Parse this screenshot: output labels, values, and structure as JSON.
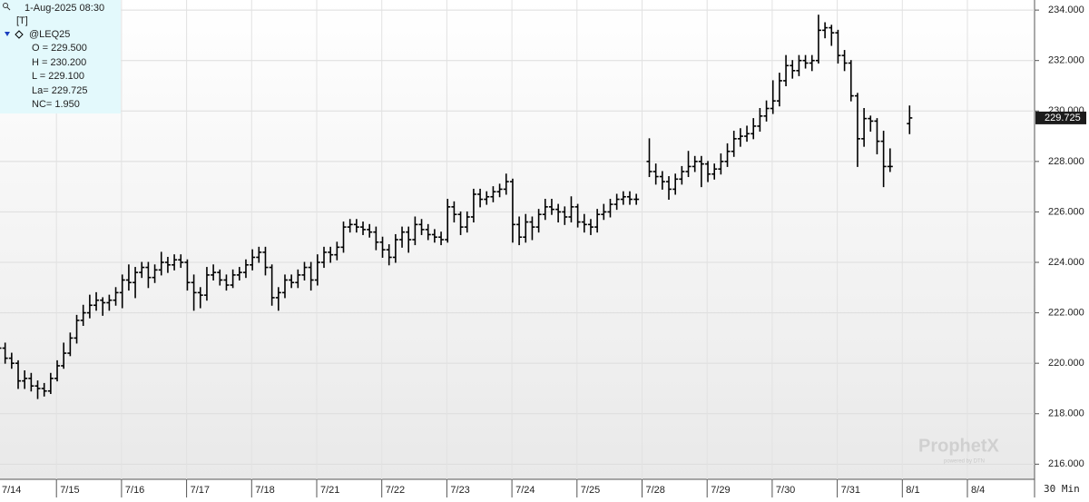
{
  "header": {
    "timestamp": "1-Aug-2025 08:30",
    "mode": "[T]",
    "symbol": "@LEQ25",
    "lines": [
      "O = 229.500",
      "H = 230.200",
      "L = 229.100",
      "La= 229.725",
      "NC= 1.950"
    ],
    "watermark": "ProphetX",
    "watermark_sub": "powered by DTN",
    "interval": "30 Min"
  },
  "chart_data": {
    "type": "ohlc",
    "grid": true,
    "ylim": [
      215.4,
      234.4
    ],
    "yticks": [
      {
        "value": 216,
        "label": "216.000"
      },
      {
        "value": 218,
        "label": "218.000"
      },
      {
        "value": 220,
        "label": "220.000"
      },
      {
        "value": 222,
        "label": "222.000"
      },
      {
        "value": 224,
        "label": "224.000"
      },
      {
        "value": 226,
        "label": "226.000"
      },
      {
        "value": 228,
        "label": "228.000"
      },
      {
        "value": 230,
        "label": "230.000"
      },
      {
        "value": 232,
        "label": "232.000"
      },
      {
        "value": 234,
        "label": "234.000"
      }
    ],
    "categories": [
      "7/14",
      null,
      null,
      null,
      null,
      null,
      null,
      null,
      null,
      null,
      "7/15",
      null,
      null,
      null,
      null,
      null,
      null,
      null,
      null,
      null,
      "7/16",
      null,
      null,
      null,
      null,
      null,
      null,
      null,
      null,
      null,
      "7/17",
      null,
      null,
      null,
      null,
      null,
      null,
      null,
      null,
      null,
      "7/18",
      null,
      null,
      null,
      null,
      null,
      null,
      null,
      null,
      null,
      "7/21",
      null,
      null,
      null,
      null,
      null,
      null,
      null,
      null,
      null,
      "7/22",
      null,
      null,
      null,
      null,
      null,
      null,
      null,
      null,
      null,
      "7/23",
      null,
      null,
      null,
      null,
      null,
      null,
      null,
      null,
      null,
      "7/24",
      null,
      null,
      null,
      null,
      null,
      null,
      null,
      null,
      null,
      "7/25",
      null,
      null,
      null,
      null,
      null,
      null,
      null,
      null,
      null,
      "7/28",
      null,
      null,
      null,
      null,
      null,
      null,
      null,
      null,
      null,
      "7/29",
      null,
      null,
      null,
      null,
      null,
      null,
      null,
      null,
      null,
      "7/30",
      null,
      null,
      null,
      null,
      null,
      null,
      null,
      null,
      null,
      "7/31",
      null,
      null,
      null,
      null,
      null,
      null,
      null,
      null,
      null,
      "8/1",
      null,
      null,
      null,
      null,
      null,
      null,
      null,
      null,
      null,
      "8/4"
    ],
    "series": [
      {
        "color": "#000000",
        "open": [
          220.8,
          220.6,
          220.2,
          220.0,
          219.3,
          219.4,
          219.1,
          219.0,
          218.9,
          219.4,
          219.9,
          220.4,
          221.0,
          221.7,
          222.0,
          222.3,
          222.5,
          222.4,
          222.5,
          222.8,
          223.3,
          223.2,
          223.6,
          223.8,
          223.4,
          223.7,
          224.0,
          223.9,
          224.1,
          224.0,
          223.2,
          222.8,
          222.7,
          223.5,
          223.6,
          223.3,
          223.1,
          223.5,
          223.6,
          223.9,
          224.2,
          224.4,
          223.8,
          222.6,
          222.8,
          223.3,
          223.2,
          223.5,
          223.8,
          223.3,
          224.0,
          224.4,
          224.3,
          224.6,
          225.4,
          225.5,
          225.4,
          225.3,
          225.2,
          224.8,
          224.5,
          224.2,
          224.9,
          225.2,
          224.9,
          225.5,
          225.3,
          225.1,
          225.0,
          224.9,
          226.2,
          225.9,
          225.4,
          225.8,
          226.7,
          226.5,
          226.6,
          226.8,
          226.9,
          227.2,
          225.5,
          225.0,
          225.6,
          225.4,
          225.9,
          226.2,
          226.1,
          226.0,
          225.8,
          226.2,
          225.6,
          225.5,
          225.4,
          225.9,
          226.0,
          226.3,
          226.5,
          226.6,
          226.5,
          null,
          228.0,
          227.6,
          227.4,
          227.2,
          226.9,
          227.3,
          227.6,
          227.8,
          228.0,
          227.9,
          227.5,
          227.7,
          228.0,
          228.4,
          228.9,
          229.0,
          229.1,
          229.4,
          229.8,
          230.1,
          230.4,
          231.2,
          231.8,
          231.6,
          232.0,
          231.9,
          232.0,
          233.2,
          233.3,
          233.1,
          232.2,
          231.9,
          230.6,
          228.9,
          229.7,
          229.6,
          228.8,
          227.8,
          null,
          null,
          229.5,
          null,
          null,
          null,
          null,
          null,
          null,
          null,
          null,
          null,
          null
        ],
        "high": [
          221.0,
          220.8,
          220.4,
          220.1,
          219.7,
          219.6,
          219.3,
          219.2,
          219.6,
          220.1,
          220.8,
          221.2,
          221.9,
          222.3,
          222.7,
          222.8,
          222.6,
          222.7,
          223.0,
          223.5,
          223.9,
          223.8,
          224.0,
          224.0,
          223.9,
          224.4,
          224.2,
          224.3,
          224.3,
          224.1,
          223.5,
          223.0,
          223.8,
          223.9,
          223.7,
          223.5,
          223.7,
          223.8,
          224.1,
          224.5,
          224.6,
          224.6,
          223.9,
          223.0,
          223.5,
          223.5,
          223.7,
          224.0,
          224.0,
          224.3,
          224.6,
          224.6,
          224.8,
          225.6,
          225.7,
          225.7,
          225.6,
          225.5,
          225.4,
          225.0,
          224.7,
          225.1,
          225.4,
          225.4,
          225.8,
          225.7,
          225.5,
          225.3,
          225.2,
          226.5,
          226.4,
          226.0,
          226.0,
          226.9,
          226.9,
          226.8,
          227.0,
          227.1,
          227.5,
          227.3,
          225.8,
          225.9,
          225.8,
          226.1,
          226.5,
          226.5,
          226.3,
          226.2,
          226.6,
          226.3,
          225.9,
          225.7,
          226.1,
          226.3,
          226.5,
          226.7,
          226.8,
          226.8,
          226.7,
          null,
          228.9,
          227.9,
          227.6,
          227.4,
          227.5,
          227.8,
          228.4,
          228.2,
          228.2,
          228.0,
          227.9,
          228.3,
          228.7,
          229.2,
          229.3,
          229.4,
          229.7,
          230.1,
          230.4,
          231.2,
          231.5,
          232.2,
          232.0,
          232.2,
          232.2,
          232.2,
          233.8,
          233.5,
          233.4,
          233.2,
          232.4,
          232.0,
          230.7,
          230.1,
          229.8,
          229.7,
          229.2,
          228.5,
          null,
          null,
          230.2,
          null,
          null,
          null,
          null,
          null,
          null,
          null,
          null,
          null,
          null
        ],
        "low": [
          220.4,
          220.0,
          219.8,
          219.0,
          219.0,
          218.9,
          218.6,
          218.7,
          218.8,
          219.3,
          219.8,
          220.3,
          220.8,
          221.5,
          221.8,
          222.1,
          221.9,
          222.1,
          222.3,
          222.2,
          222.9,
          222.6,
          223.4,
          223.0,
          223.2,
          223.5,
          223.6,
          223.7,
          223.8,
          222.9,
          222.1,
          222.2,
          222.5,
          223.3,
          223.1,
          222.9,
          223.0,
          223.3,
          223.4,
          223.7,
          224.0,
          223.5,
          222.3,
          222.1,
          222.6,
          223.0,
          223.0,
          223.3,
          222.9,
          223.1,
          223.8,
          224.0,
          224.1,
          224.4,
          225.2,
          225.2,
          225.1,
          225.0,
          224.5,
          224.2,
          223.9,
          224.0,
          224.6,
          224.4,
          224.7,
          225.1,
          224.9,
          224.8,
          224.7,
          224.8,
          225.6,
          225.1,
          225.2,
          225.6,
          226.2,
          226.3,
          226.4,
          226.6,
          226.7,
          224.8,
          224.7,
          224.8,
          224.9,
          225.2,
          225.7,
          225.9,
          225.6,
          225.5,
          225.6,
          225.4,
          225.2,
          225.1,
          225.2,
          225.7,
          225.8,
          226.1,
          226.3,
          226.3,
          226.3,
          null,
          227.4,
          227.1,
          226.9,
          226.5,
          226.7,
          227.1,
          227.4,
          227.6,
          227.0,
          227.2,
          227.3,
          227.5,
          227.8,
          228.2,
          228.6,
          228.8,
          228.9,
          229.2,
          229.6,
          229.9,
          230.2,
          231.0,
          231.3,
          231.4,
          231.7,
          231.6,
          231.9,
          232.9,
          232.6,
          231.9,
          231.6,
          230.4,
          227.8,
          228.6,
          229.2,
          228.3,
          227.0,
          227.6,
          null,
          null,
          229.1,
          null,
          null,
          null,
          null,
          null,
          null,
          null,
          null,
          null,
          null
        ],
        "close": [
          220.6,
          220.2,
          220.0,
          219.3,
          219.4,
          219.1,
          219.0,
          218.9,
          219.4,
          219.9,
          220.4,
          221.0,
          221.7,
          222.0,
          222.3,
          222.5,
          222.4,
          222.5,
          222.8,
          223.3,
          223.2,
          223.6,
          223.8,
          223.4,
          223.7,
          224.0,
          223.9,
          224.1,
          224.0,
          223.2,
          222.8,
          222.7,
          223.5,
          223.6,
          223.3,
          223.1,
          223.5,
          223.6,
          223.9,
          224.2,
          224.4,
          223.8,
          222.6,
          222.8,
          223.3,
          223.2,
          223.5,
          223.8,
          223.3,
          224.0,
          224.4,
          224.3,
          224.6,
          225.4,
          225.5,
          225.4,
          225.3,
          225.2,
          224.8,
          224.5,
          224.2,
          224.9,
          225.2,
          224.9,
          225.5,
          225.3,
          225.1,
          225.0,
          224.9,
          226.2,
          225.9,
          225.4,
          225.8,
          226.7,
          226.5,
          226.6,
          226.8,
          226.9,
          227.2,
          225.5,
          225.0,
          225.6,
          225.4,
          225.9,
          226.2,
          226.1,
          226.0,
          225.8,
          226.2,
          225.6,
          225.5,
          225.4,
          225.9,
          226.0,
          226.3,
          226.5,
          226.6,
          226.5,
          226.5,
          null,
          227.6,
          227.4,
          227.2,
          226.9,
          227.3,
          227.6,
          227.8,
          228.0,
          227.9,
          227.5,
          227.7,
          228.0,
          228.4,
          228.9,
          229.0,
          229.1,
          229.4,
          229.8,
          230.1,
          230.4,
          231.2,
          231.8,
          231.6,
          232.0,
          231.9,
          232.0,
          233.2,
          233.3,
          233.1,
          232.2,
          231.9,
          230.6,
          228.9,
          229.7,
          229.6,
          228.8,
          227.8,
          227.8,
          null,
          null,
          229.725,
          null,
          null,
          null,
          null,
          null,
          null,
          null,
          null,
          null,
          null
        ]
      }
    ]
  }
}
